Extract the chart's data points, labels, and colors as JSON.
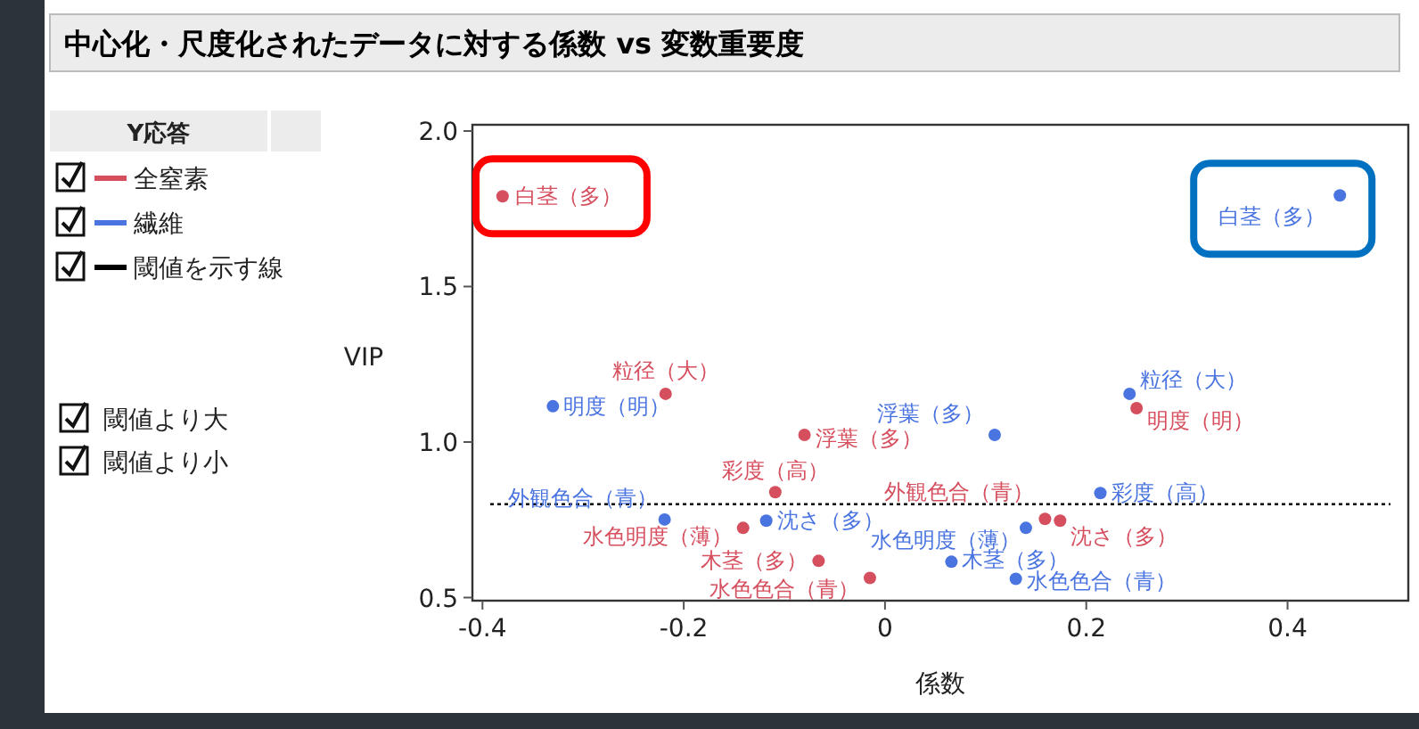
{
  "chart_data": {
    "type": "scatter",
    "title": "中心化・尺度化されたデータに対する係数 vs 変数重要度",
    "xlabel": "係数",
    "ylabel": "VIP",
    "legend_title": "Y応答",
    "legend": "left",
    "marker": "circle",
    "grid": false,
    "xlim": [
      -0.41,
      0.52
    ],
    "xticks": [
      -0.4,
      -0.2,
      0,
      0.2,
      0.4
    ],
    "ylim": [
      0.49,
      2.02
    ],
    "yticks": [
      {
        "value": 0.5,
        "label": "0.5"
      },
      {
        "value": 1,
        "label": "1.0"
      },
      {
        "value": 1.5,
        "label": "1.5"
      },
      {
        "value": 2,
        "label": "2.0"
      }
    ],
    "series": [
      {
        "name": "全窒素",
        "color": "#d64f5e",
        "x": [
          -0.38,
          -0.218,
          -0.08,
          -0.109,
          -0.141,
          -0.066,
          -0.015,
          0.159,
          0.174,
          0.25
        ],
        "values": [
          1.79,
          1.155,
          1.023,
          0.839,
          0.724,
          0.618,
          0.563,
          0.753,
          0.747,
          1.109
        ]
      },
      {
        "name": "繊維",
        "color": "#4a74e0",
        "x": [
          0.452,
          -0.33,
          0.109,
          0.243,
          -0.219,
          -0.118,
          0.214,
          0.14,
          0.066,
          0.13
        ],
        "values": [
          1.793,
          1.115,
          1.023,
          1.155,
          0.751,
          0.747,
          0.836,
          0.724,
          0.615,
          0.56
        ]
      }
    ],
    "ref_lines": [
      {
        "axis": "y",
        "value": 0.8,
        "label": "閾値を示す線",
        "color": "#000000",
        "line_style": "dotted"
      }
    ],
    "annotations": [
      {
        "text": "白茎（多）",
        "x": -0.38,
        "y": 1.79
      },
      {
        "text": "粒径（大）",
        "x": -0.218,
        "y": 1.155
      },
      {
        "text": "浮葉（多）",
        "x": -0.08,
        "y": 1.023
      },
      {
        "text": "彩度（高）",
        "x": -0.109,
        "y": 0.839
      },
      {
        "text": "水色明度（薄）",
        "x": -0.141,
        "y": 0.724
      },
      {
        "text": "木茎（多）",
        "x": -0.066,
        "y": 0.618
      },
      {
        "text": "水色色合（青）",
        "x": -0.015,
        "y": 0.563
      },
      {
        "text": "外観色合（青）",
        "x": 0.159,
        "y": 0.753
      },
      {
        "text": "沈さ（多）",
        "x": 0.174,
        "y": 0.747
      },
      {
        "text": "明度（明）",
        "x": 0.25,
        "y": 1.109
      },
      {
        "text": "白茎（多）",
        "x": 0.452,
        "y": 1.793
      },
      {
        "text": "明度（明）",
        "x": -0.33,
        "y": 1.115
      },
      {
        "text": "浮葉（多）",
        "x": 0.109,
        "y": 1.023
      },
      {
        "text": "粒径（大）",
        "x": 0.243,
        "y": 1.155
      },
      {
        "text": "外観色合（青）",
        "x": -0.219,
        "y": 0.751
      },
      {
        "text": "沈さ（多）",
        "x": -0.118,
        "y": 0.747
      },
      {
        "text": "彩度（高）",
        "x": 0.214,
        "y": 0.836
      },
      {
        "text": "水色明度（薄）",
        "x": 0.14,
        "y": 0.724
      },
      {
        "text": "木茎（多）",
        "x": 0.066,
        "y": 0.615
      },
      {
        "text": "水色色合（青）",
        "x": 0.13,
        "y": 0.56
      },
      "閾値より大",
      "閾値より小"
    ]
  }
}
